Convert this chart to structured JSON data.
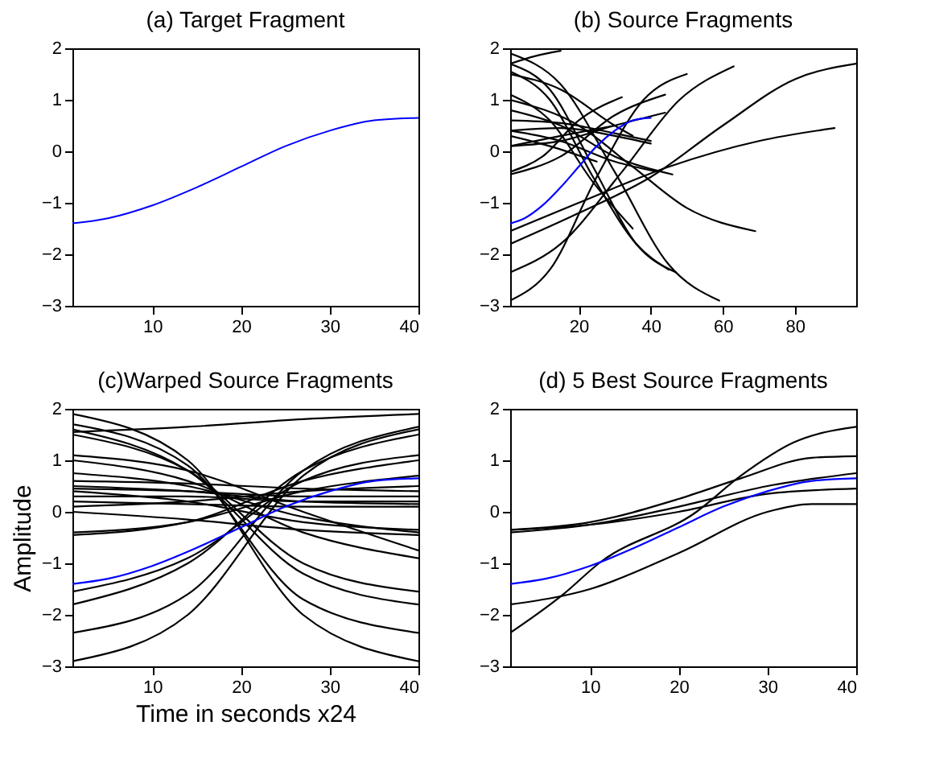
{
  "chart_data": [
    {
      "type": "line",
      "title": "(a) Target Fragment",
      "xlim": [
        1,
        40
      ],
      "xticks": [
        10,
        20,
        30,
        40
      ],
      "ylim": [
        -3,
        2
      ],
      "yticks": [
        -3,
        -2,
        -1,
        0,
        1,
        2
      ],
      "grid": false,
      "legend": false,
      "marker": "none",
      "line_style": "solid",
      "series": [
        {
          "color": "#0000ff",
          "x": [
            1,
            5,
            10,
            15,
            20,
            25,
            30,
            35,
            40
          ],
          "values": [
            -1.4,
            -1.3,
            -1.05,
            -0.7,
            -0.3,
            0.1,
            0.4,
            0.6,
            0.65
          ]
        }
      ]
    },
    {
      "type": "line",
      "title": "(b) Source Fragments",
      "xlim": [
        1,
        97
      ],
      "xticks": [
        20,
        40,
        60,
        80
      ],
      "ylim": [
        -3,
        2
      ],
      "yticks": [
        -3,
        -2,
        -1,
        0,
        1,
        2
      ],
      "grid": false,
      "legend": false,
      "marker": "none",
      "line_style": "solid",
      "series": [
        {
          "color": "#000000",
          "x": [
            1,
            8,
            15
          ],
          "values": [
            1.7,
            1.85,
            1.95
          ]
        },
        {
          "color": "#000000",
          "x": [
            1,
            15,
            30,
            45,
            59
          ],
          "values": [
            1.9,
            1.3,
            -0.4,
            -2.2,
            -2.9
          ]
        },
        {
          "color": "#000000",
          "x": [
            1,
            12,
            24,
            36,
            47
          ],
          "values": [
            1.7,
            1.2,
            -0.3,
            -1.8,
            -2.35
          ]
        },
        {
          "color": "#000000",
          "x": [
            1,
            12,
            24,
            36,
            45
          ],
          "values": [
            1.55,
            1.0,
            -0.5,
            -1.8,
            -2.3
          ]
        },
        {
          "color": "#000000",
          "x": [
            1,
            20,
            35,
            50,
            69
          ],
          "values": [
            1.0,
            0.5,
            -0.3,
            -1.1,
            -1.55
          ]
        },
        {
          "color": "#000000",
          "x": [
            1,
            12,
            25,
            38,
            50
          ],
          "values": [
            -2.9,
            -2.3,
            -0.5,
            1.0,
            1.5
          ]
        },
        {
          "color": "#000000",
          "x": [
            1,
            15,
            32,
            48,
            63
          ],
          "values": [
            -2.35,
            -1.8,
            -0.4,
            1.0,
            1.65
          ]
        },
        {
          "color": "#000000",
          "x": [
            1,
            20,
            40,
            60,
            80,
            97
          ],
          "values": [
            -1.8,
            -1.2,
            -0.5,
            0.5,
            1.4,
            1.7
          ]
        },
        {
          "color": "#000000",
          "x": [
            1,
            20,
            45,
            70,
            91
          ],
          "values": [
            -1.55,
            -1.0,
            -0.3,
            0.2,
            0.45
          ]
        },
        {
          "color": "#000000",
          "x": [
            1,
            15,
            30,
            44
          ],
          "values": [
            -0.45,
            -0.1,
            0.7,
            1.1
          ]
        },
        {
          "color": "#000000",
          "x": [
            1,
            10,
            20,
            32
          ],
          "values": [
            -0.4,
            -0.1,
            0.6,
            1.05
          ]
        },
        {
          "color": "#000000",
          "x": [
            1,
            15,
            30,
            44
          ],
          "values": [
            0.1,
            0.2,
            0.5,
            0.75
          ]
        },
        {
          "color": "#000000",
          "x": [
            1,
            15,
            30,
            40
          ],
          "values": [
            0.4,
            0.45,
            0.3,
            0.15
          ]
        },
        {
          "color": "#000000",
          "x": [
            1,
            15,
            30,
            40
          ],
          "values": [
            0.6,
            0.55,
            0.35,
            0.2
          ]
        },
        {
          "color": "#000000",
          "x": [
            1,
            15,
            30,
            46
          ],
          "values": [
            0.8,
            0.5,
            -0.1,
            -0.45
          ]
        },
        {
          "color": "#000000",
          "x": [
            1,
            12,
            24,
            35
          ],
          "values": [
            1.1,
            0.6,
            -0.6,
            -1.5
          ]
        },
        {
          "color": "#000000",
          "x": [
            1,
            15,
            30,
            42
          ],
          "values": [
            0.4,
            0.2,
            -0.2,
            -0.4
          ]
        },
        {
          "color": "#000000",
          "x": [
            1,
            15,
            30
          ],
          "values": [
            0.1,
            0.3,
            0.5
          ]
        },
        {
          "color": "#000000",
          "x": [
            1,
            15,
            30,
            35
          ],
          "values": [
            1.5,
            1.2,
            0.5,
            0.3
          ]
        },
        {
          "color": "#000000",
          "x": [
            1,
            12,
            25
          ],
          "values": [
            0.3,
            0.1,
            -0.2
          ]
        },
        {
          "color": "#0000ff",
          "x": [
            1,
            5,
            10,
            15,
            20,
            25,
            30,
            35,
            40
          ],
          "values": [
            -1.4,
            -1.3,
            -1.05,
            -0.7,
            -0.3,
            0.1,
            0.4,
            0.6,
            0.65
          ]
        }
      ]
    },
    {
      "type": "line",
      "title": "(c)Warped Source Fragments",
      "xlabel": "Time in seconds x24",
      "ylabel": "Amplitude",
      "xlim": [
        1,
        40
      ],
      "xticks": [
        10,
        20,
        30,
        40
      ],
      "ylim": [
        -3,
        2
      ],
      "yticks": [
        -3,
        -2,
        -1,
        0,
        1,
        2
      ],
      "grid": false,
      "legend": false,
      "marker": "none",
      "line_style": "solid",
      "series": [
        {
          "color": "#000000",
          "x": [
            1,
            14,
            27,
            40
          ],
          "values": [
            1.55,
            1.65,
            1.8,
            1.9
          ]
        },
        {
          "color": "#000000",
          "x": [
            1,
            14,
            27,
            40
          ],
          "values": [
            1.9,
            1.0,
            -2.0,
            -2.9
          ]
        },
        {
          "color": "#000000",
          "x": [
            1,
            14,
            27,
            40
          ],
          "values": [
            1.7,
            0.9,
            -1.7,
            -2.35
          ]
        },
        {
          "color": "#000000",
          "x": [
            1,
            14,
            27,
            40
          ],
          "values": [
            1.6,
            0.8,
            -1.2,
            -1.8
          ]
        },
        {
          "color": "#000000",
          "x": [
            1,
            14,
            27,
            40
          ],
          "values": [
            1.5,
            0.8,
            -1.0,
            -1.55
          ]
        },
        {
          "color": "#000000",
          "x": [
            1,
            14,
            27,
            40
          ],
          "values": [
            1.0,
            0.6,
            -0.4,
            -0.9
          ]
        },
        {
          "color": "#000000",
          "x": [
            1,
            14,
            27,
            40
          ],
          "values": [
            1.1,
            0.8,
            0.0,
            -0.75
          ]
        },
        {
          "color": "#000000",
          "x": [
            1,
            14,
            27,
            40
          ],
          "values": [
            -2.9,
            -2.0,
            0.7,
            1.6
          ]
        },
        {
          "color": "#000000",
          "x": [
            1,
            14,
            27,
            40
          ],
          "values": [
            -2.35,
            -1.6,
            0.8,
            1.65
          ]
        },
        {
          "color": "#000000",
          "x": [
            1,
            14,
            27,
            40
          ],
          "values": [
            -1.8,
            -1.0,
            0.8,
            1.5
          ]
        },
        {
          "color": "#000000",
          "x": [
            1,
            14,
            27,
            40
          ],
          "values": [
            -1.55,
            -0.9,
            0.6,
            1.1
          ]
        },
        {
          "color": "#000000",
          "x": [
            1,
            14,
            27,
            40
          ],
          "values": [
            -0.45,
            -0.2,
            0.6,
            1.0
          ]
        },
        {
          "color": "#000000",
          "x": [
            1,
            14,
            27,
            40
          ],
          "values": [
            -0.4,
            -0.2,
            0.4,
            0.7
          ]
        },
        {
          "color": "#000000",
          "x": [
            1,
            14,
            27,
            40
          ],
          "values": [
            0.75,
            0.5,
            -0.1,
            -0.4
          ]
        },
        {
          "color": "#000000",
          "x": [
            1,
            14,
            27,
            40
          ],
          "values": [
            0.6,
            0.55,
            0.45,
            0.4
          ]
        },
        {
          "color": "#000000",
          "x": [
            1,
            14,
            27,
            40
          ],
          "values": [
            0.5,
            0.4,
            0.2,
            0.15
          ]
        },
        {
          "color": "#000000",
          "x": [
            1,
            14,
            27,
            40
          ],
          "values": [
            0.4,
            0.2,
            -0.2,
            -0.35
          ]
        },
        {
          "color": "#000000",
          "x": [
            1,
            14,
            27,
            40
          ],
          "values": [
            0.3,
            0.3,
            0.2,
            0.2
          ]
        },
        {
          "color": "#000000",
          "x": [
            1,
            14,
            27,
            40
          ],
          "values": [
            0.1,
            0.2,
            0.4,
            0.5
          ]
        },
        {
          "color": "#000000",
          "x": [
            1,
            14,
            27,
            40
          ],
          "values": [
            0.2,
            0.15,
            0.1,
            0.1
          ]
        },
        {
          "color": "#000000",
          "x": [
            1,
            14,
            27,
            40
          ],
          "values": [
            0.45,
            0.4,
            0.3,
            0.3
          ]
        },
        {
          "color": "#000000",
          "x": [
            1,
            14,
            27,
            40
          ],
          "values": [
            0.0,
            -0.15,
            -0.35,
            -0.45
          ]
        },
        {
          "color": "#0000ff",
          "x": [
            1,
            5,
            10,
            15,
            20,
            25,
            30,
            35,
            40
          ],
          "values": [
            -1.4,
            -1.3,
            -1.05,
            -0.7,
            -0.3,
            0.1,
            0.4,
            0.6,
            0.65
          ]
        }
      ]
    },
    {
      "type": "line",
      "title": "(d) 5 Best Source Fragments",
      "xlim": [
        1,
        40
      ],
      "xticks": [
        10,
        20,
        30,
        40
      ],
      "ylim": [
        -3,
        2
      ],
      "yticks": [
        -3,
        -2,
        -1,
        0,
        1,
        2
      ],
      "grid": false,
      "legend": false,
      "marker": "none",
      "line_style": "solid",
      "series": [
        {
          "color": "#000000",
          "x": [
            1,
            7,
            11,
            22,
            27,
            33,
            40
          ],
          "values": [
            -2.35,
            -1.6,
            -1.0,
            0.0,
            0.7,
            1.35,
            1.65
          ]
        },
        {
          "color": "#000000",
          "x": [
            1,
            10,
            20,
            30,
            35,
            40
          ],
          "values": [
            -1.8,
            -1.5,
            -0.8,
            0.0,
            0.15,
            0.15
          ]
        },
        {
          "color": "#000000",
          "x": [
            1,
            10,
            20,
            27,
            35,
            40
          ],
          "values": [
            -0.35,
            -0.2,
            0.25,
            0.65,
            1.05,
            1.08
          ]
        },
        {
          "color": "#000000",
          "x": [
            1,
            10,
            20,
            30,
            40
          ],
          "values": [
            -0.4,
            -0.25,
            0.1,
            0.5,
            0.75
          ]
        },
        {
          "color": "#000000",
          "x": [
            1,
            10,
            20,
            30,
            40
          ],
          "values": [
            -0.35,
            -0.25,
            0.0,
            0.35,
            0.45
          ]
        },
        {
          "color": "#0000ff",
          "x": [
            1,
            5,
            10,
            15,
            20,
            25,
            30,
            35,
            40
          ],
          "values": [
            -1.4,
            -1.3,
            -1.05,
            -0.7,
            -0.3,
            0.1,
            0.4,
            0.6,
            0.65
          ]
        }
      ]
    }
  ]
}
